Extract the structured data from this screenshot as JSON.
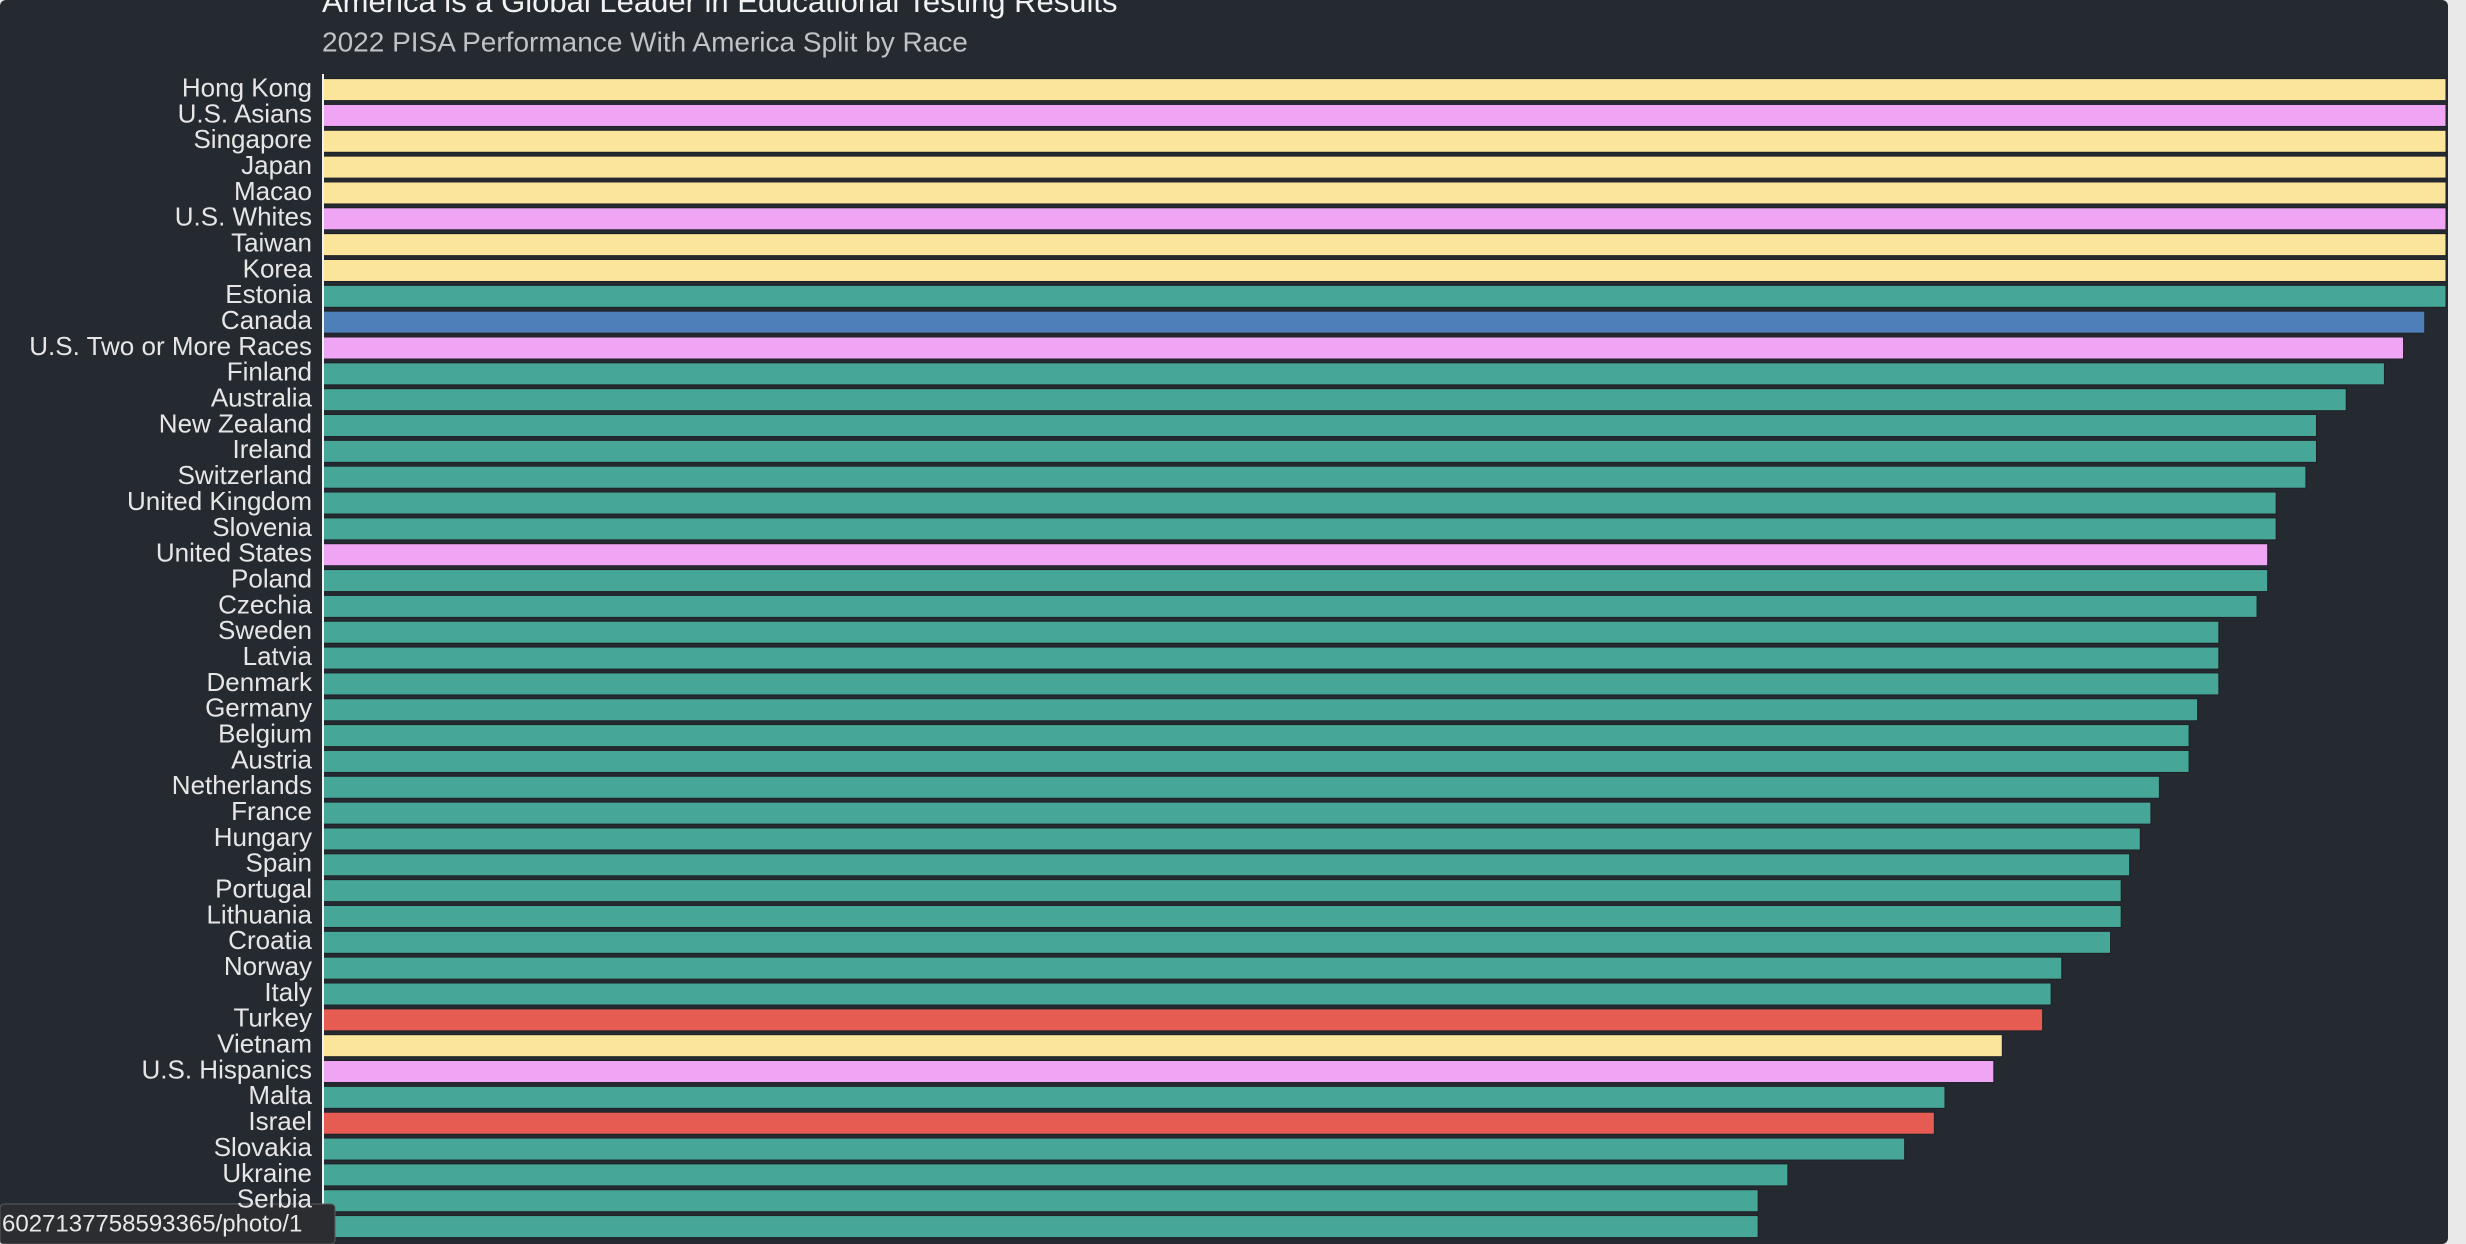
{
  "chart_data": {
    "type": "bar",
    "orientation": "horizontal",
    "title": "America is a Global Leader in Educational Testing Results",
    "subtitle": "2022 PISA Performance With America Split by Race",
    "categories": [
      "Hong Kong",
      "U.S. Asians",
      "Singapore",
      "Japan",
      "Macao",
      "U.S. Whites",
      "Taiwan",
      "Korea",
      "Estonia",
      "Canada",
      "U.S. Two or More Races",
      "Finland",
      "Australia",
      "New Zealand",
      "Ireland",
      "Switzerland",
      "United Kingdom",
      "Slovenia",
      "United States",
      "Poland",
      "Czechia",
      "Sweden",
      "Latvia",
      "Denmark",
      "Germany",
      "Belgium",
      "Austria",
      "Netherlands",
      "France",
      "Hungary",
      "Spain",
      "Portugal",
      "Lithuania",
      "Croatia",
      "Norway",
      "Italy",
      "Turkey",
      "Vietnam",
      "U.S. Hispanics",
      "Malta",
      "Israel",
      "Slovakia",
      "Ukraine",
      "Serbia",
      null
    ],
    "values": [
      100,
      100,
      100,
      100,
      100,
      100,
      100,
      100,
      100,
      99.0,
      98.0,
      97.1,
      95.3,
      93.9,
      93.9,
      93.4,
      92.0,
      92.0,
      91.6,
      91.6,
      91.1,
      89.3,
      89.3,
      89.3,
      88.3,
      87.9,
      87.9,
      86.5,
      86.1,
      85.6,
      85.1,
      84.7,
      84.7,
      84.2,
      81.9,
      81.4,
      81.0,
      79.1,
      78.7,
      76.4,
      75.9,
      74.5,
      69.0,
      67.6,
      67.6
    ],
    "colors": [
      "#fbe59a",
      "#f0a5f4",
      "#fbe59a",
      "#fbe59a",
      "#fbe59a",
      "#f0a5f4",
      "#fbe59a",
      "#fbe59a",
      "#46a697",
      "#4f7fb8",
      "#f0a5f4",
      "#46a697",
      "#46a697",
      "#46a697",
      "#46a697",
      "#46a697",
      "#46a697",
      "#46a697",
      "#f0a5f4",
      "#46a697",
      "#46a697",
      "#46a697",
      "#46a697",
      "#46a697",
      "#46a697",
      "#46a697",
      "#46a697",
      "#46a697",
      "#46a697",
      "#46a697",
      "#46a697",
      "#46a697",
      "#46a697",
      "#46a697",
      "#46a697",
      "#46a697",
      "#e65c53",
      "#fbe59a",
      "#f0a5f4",
      "#46a697",
      "#e65c53",
      "#46a697",
      "#46a697",
      "#46a697",
      "#46a697"
    ],
    "xlim": [
      0,
      100
    ],
    "grid": false
  },
  "status_url": "6027137758593365/photo/1"
}
